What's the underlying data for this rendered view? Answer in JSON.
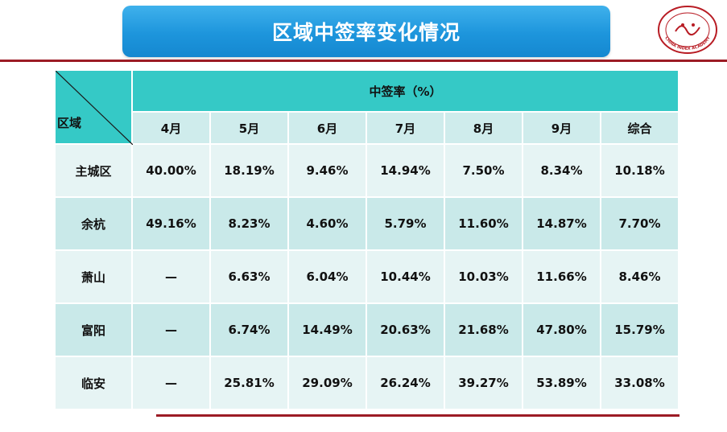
{
  "header": {
    "title": "区域中签率变化情况"
  },
  "logo": {
    "icon": "china-index-academy-seal-icon",
    "text": "CHINA INDEX ACADEMY",
    "color": "#b81c24"
  },
  "colors": {
    "title_bar": "#1d95dc",
    "header_teal": "#35c9c6",
    "month_row": "#cfecec",
    "row_light": "#e6f4f4",
    "row_dark": "#c9e9e9",
    "accent_line": "#9c1b25"
  },
  "chart_data": {
    "type": "table",
    "corner_label": "区域",
    "group_header": "中签率（%）",
    "columns": [
      "4月",
      "5月",
      "6月",
      "7月",
      "8月",
      "9月",
      "综合"
    ],
    "rows": [
      {
        "region": "主城区",
        "values": [
          "40.00%",
          "18.19%",
          "9.46%",
          "14.94%",
          "7.50%",
          "8.34%",
          "10.18%"
        ]
      },
      {
        "region": "余杭",
        "values": [
          "49.16%",
          "8.23%",
          "4.60%",
          "5.79%",
          "11.60%",
          "14.87%",
          "7.70%"
        ]
      },
      {
        "region": "萧山",
        "values": [
          "—",
          "6.63%",
          "6.04%",
          "10.44%",
          "10.03%",
          "11.66%",
          "8.46%"
        ]
      },
      {
        "region": "富阳",
        "values": [
          "—",
          "6.74%",
          "14.49%",
          "20.63%",
          "21.68%",
          "47.80%",
          "15.79%"
        ]
      },
      {
        "region": "临安",
        "values": [
          "—",
          "25.81%",
          "29.09%",
          "26.24%",
          "39.27%",
          "53.89%",
          "33.08%"
        ]
      }
    ]
  }
}
